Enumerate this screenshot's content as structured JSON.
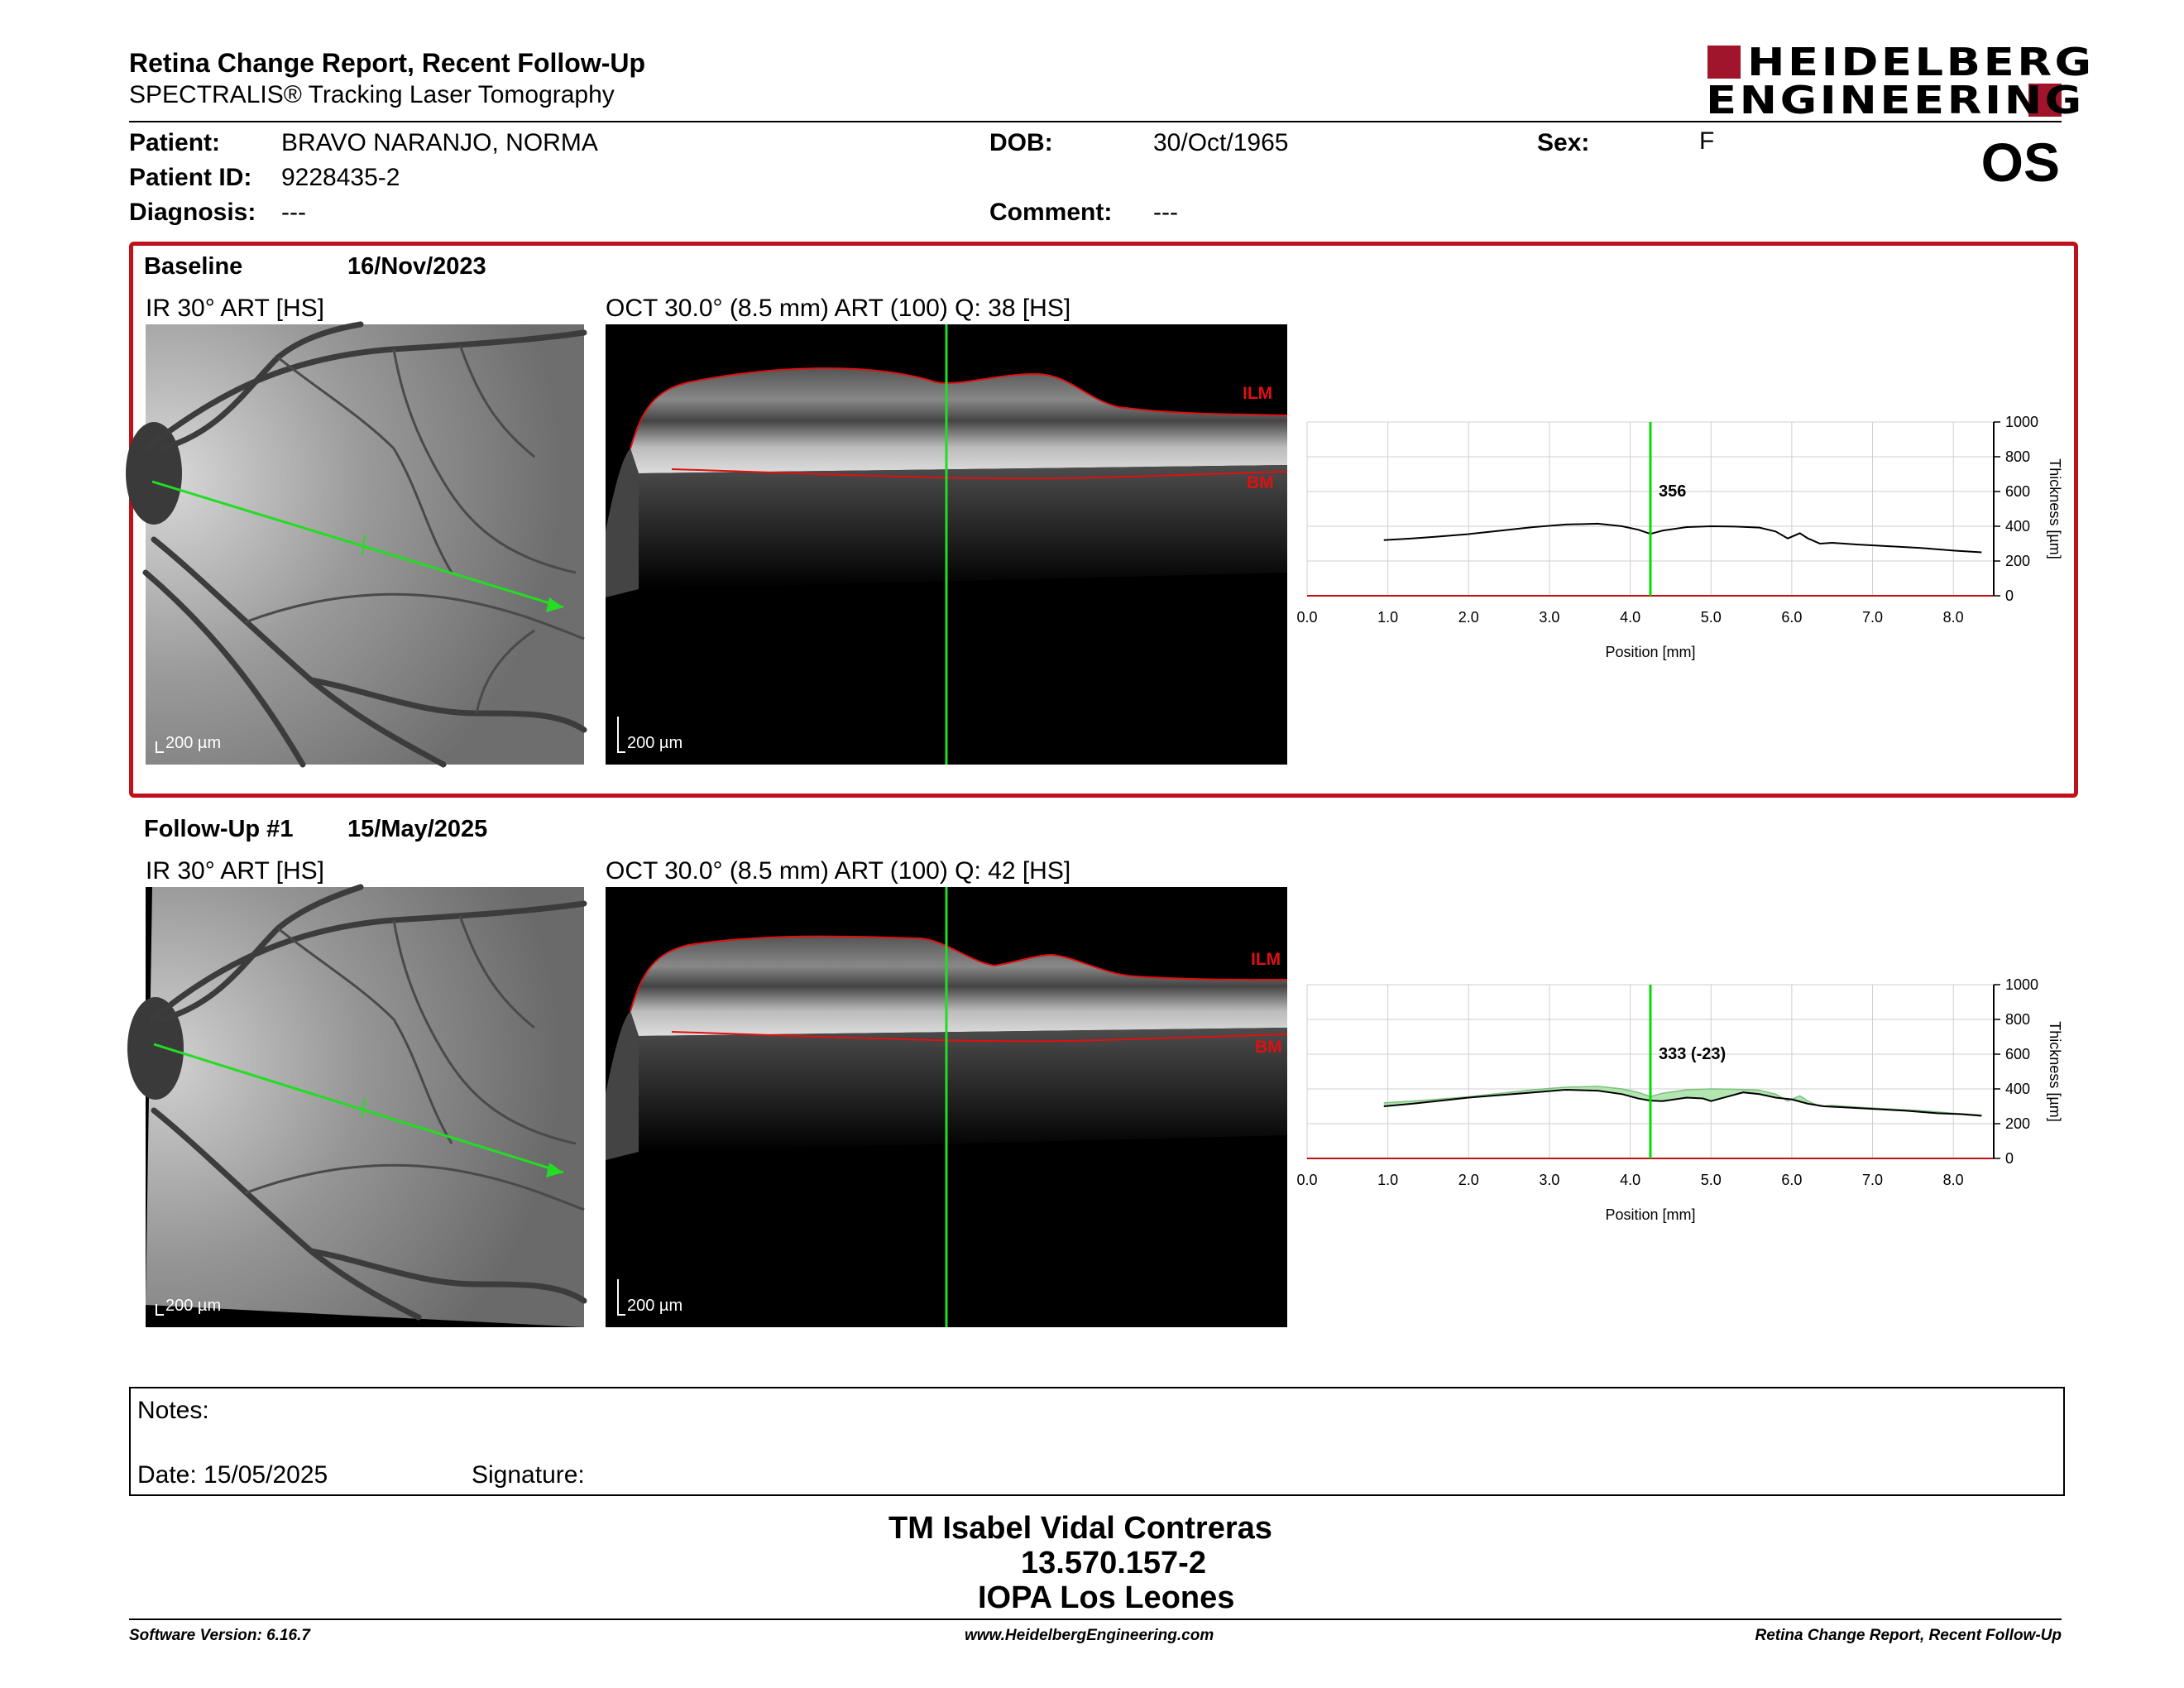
{
  "report": {
    "title": "Retina Change Report, Recent Follow-Up",
    "subtitle": "SPECTRALIS® Tracking Laser Tomography",
    "logo_line1": "HEIDELBERG",
    "logo_line2": "ENGINEERING",
    "eye": "OS"
  },
  "patient": {
    "patient_label": "Patient:",
    "patient_value": "BRAVO NARANJO, NORMA",
    "id_label": "Patient ID:",
    "id_value": "9228435-2",
    "diagnosis_label": "Diagnosis:",
    "diagnosis_value": "---",
    "dob_label": "DOB:",
    "dob_value": "30/Oct/1965",
    "comment_label": "Comment:",
    "comment_value": "---",
    "sex_label": "Sex:",
    "sex_value": "F"
  },
  "exams": [
    {
      "label": "Baseline",
      "date": "16/Nov/2023",
      "ir_caption": "IR 30° ART [HS]",
      "oct_caption": "OCT 30.0° (8.5 mm) ART (100) Q: 38 [HS]",
      "ir_scale": "200 µm",
      "oct_scale": "200 µm",
      "ilm": "ILM",
      "bm": "BM",
      "marker_value": "356"
    },
    {
      "label": "Follow-Up #1",
      "date": "15/May/2025",
      "ir_caption": "IR 30° ART [HS]",
      "oct_caption": "OCT 30.0° (8.5 mm) ART (100) Q: 42 [HS]",
      "ir_scale": "200 µm",
      "oct_scale": "200 µm",
      "ilm": "ILM",
      "bm": "BM",
      "marker_value": "333 (-23)"
    }
  ],
  "chart_data": [
    {
      "type": "line",
      "xlabel": "Position [mm]",
      "ylabel": "Thickness [µm]",
      "xlim": [
        0,
        8.5
      ],
      "ylim": [
        0,
        1000
      ],
      "x_ticks": [
        "0.0",
        "1.0",
        "2.0",
        "3.0",
        "4.0",
        "5.0",
        "6.0",
        "7.0",
        "8.0"
      ],
      "y_ticks": [
        "0",
        "200",
        "400",
        "600",
        "800",
        "1000"
      ],
      "marker_x": 4.25,
      "marker_label": "356",
      "series": [
        {
          "x": [
            0.95,
            1.3,
            1.6,
            2.0,
            2.4,
            2.8,
            3.2,
            3.6,
            3.9,
            4.1,
            4.25,
            4.4,
            4.7,
            5.0,
            5.3,
            5.6,
            5.8,
            5.95,
            6.1,
            6.2,
            6.35,
            6.5,
            6.8,
            7.2,
            7.6,
            8.0,
            8.35
          ],
          "y": [
            320,
            330,
            340,
            355,
            375,
            395,
            410,
            415,
            400,
            380,
            356,
            375,
            395,
            400,
            398,
            392,
            370,
            330,
            360,
            330,
            300,
            305,
            295,
            285,
            275,
            260,
            250
          ]
        }
      ],
      "line_color": "#000000",
      "marker_color": "#00dd00"
    },
    {
      "type": "line",
      "xlabel": "Position [mm]",
      "ylabel": "Thickness [µm]",
      "xlim": [
        0,
        8.5
      ],
      "ylim": [
        0,
        1000
      ],
      "x_ticks": [
        "0.0",
        "1.0",
        "2.0",
        "3.0",
        "4.0",
        "5.0",
        "6.0",
        "7.0",
        "8.0"
      ],
      "y_ticks": [
        "0",
        "200",
        "400",
        "600",
        "800",
        "1000"
      ],
      "marker_x": 4.25,
      "marker_label": "333 (-23)",
      "series": [
        {
          "x": [
            0.95,
            1.3,
            1.6,
            2.0,
            2.4,
            2.8,
            3.2,
            3.6,
            3.9,
            4.1,
            4.25,
            4.4,
            4.7,
            5.0,
            5.3,
            5.6,
            5.8,
            5.95,
            6.1,
            6.2,
            6.35,
            6.5,
            6.8,
            7.2,
            7.6,
            8.0,
            8.35
          ],
          "y": [
            320,
            330,
            340,
            355,
            375,
            395,
            410,
            415,
            400,
            380,
            356,
            375,
            395,
            400,
            398,
            392,
            370,
            330,
            360,
            330,
            300,
            305,
            295,
            285,
            275,
            260,
            250
          ]
        },
        {
          "x": [
            0.95,
            1.3,
            1.6,
            2.0,
            2.4,
            2.8,
            3.2,
            3.6,
            3.9,
            4.1,
            4.25,
            4.4,
            4.7,
            4.9,
            5.0,
            5.2,
            5.4,
            5.6,
            5.8,
            6.0,
            6.2,
            6.4,
            6.6,
            7.0,
            7.4,
            7.8,
            8.1,
            8.35
          ],
          "y": [
            300,
            315,
            330,
            350,
            365,
            380,
            395,
            390,
            370,
            345,
            333,
            330,
            350,
            345,
            330,
            355,
            380,
            370,
            350,
            340,
            315,
            300,
            295,
            285,
            275,
            260,
            255,
            245
          ]
        }
      ],
      "line_color": "#000000",
      "fill_color": "#a8e3a8",
      "marker_color": "#00dd00"
    }
  ],
  "notes": {
    "notes_label": "Notes:",
    "date_label": "Date: 15/05/2025",
    "signature_label": "Signature:"
  },
  "signatory": {
    "name": "TM Isabel Vidal Contreras",
    "rut": "13.570.157-2",
    "place": "IOPA Los Leones"
  },
  "footer": {
    "software": "Software Version: 6.16.7",
    "website": "www.HeidelbergEngineering.com",
    "report_name": "Retina Change Report, Recent Follow-Up"
  }
}
